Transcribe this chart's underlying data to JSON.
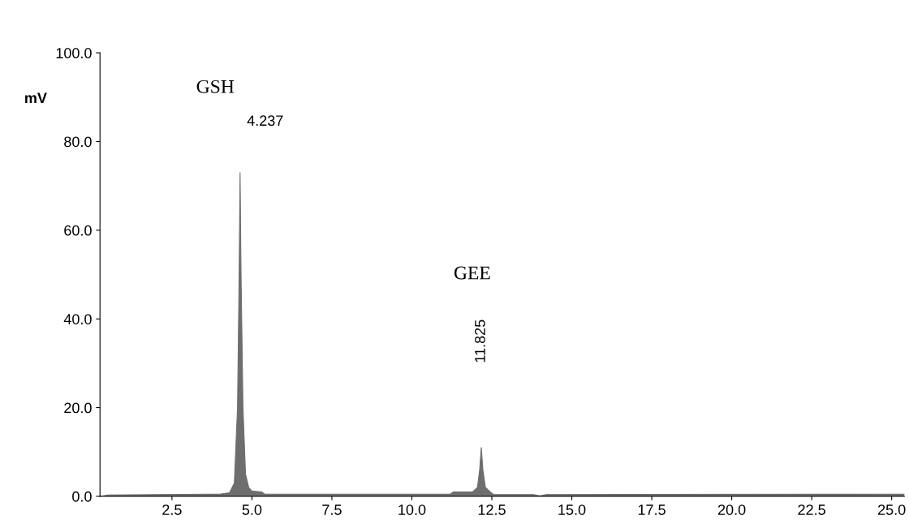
{
  "chart_data": {
    "type": "area",
    "ylabel": "mV",
    "x": [
      0.25,
      0.5,
      2.0,
      4.0,
      4.3,
      4.45,
      4.55,
      4.6,
      4.63,
      4.66,
      4.72,
      4.8,
      4.9,
      5.0,
      5.3,
      5.4,
      8.0,
      11.2,
      11.3,
      11.9,
      12.05,
      12.12,
      12.17,
      12.22,
      12.3,
      12.45,
      12.55,
      13.8,
      14.0,
      14.2,
      25.4
    ],
    "series": [
      {
        "color": "#6e6e6e",
        "values": [
          0,
          0.3,
          0.4,
          0.5,
          0.8,
          3,
          20,
          50,
          73,
          50,
          20,
          5,
          2,
          1.2,
          1.0,
          0.5,
          0.5,
          0.5,
          1.0,
          1.0,
          2,
          6,
          11,
          6,
          2,
          1,
          0.4,
          0.4,
          0.1,
          0.4,
          0.5
        ]
      }
    ],
    "annotations": [
      "GSH",
      "4.237",
      "GEE",
      "11.825"
    ],
    "xlim": [
      0.25,
      25.4
    ],
    "xticks": [
      {
        "value": 2.5,
        "label": "2.5"
      },
      {
        "value": 5,
        "label": "5.0"
      },
      {
        "value": 7.5,
        "label": "7.5"
      },
      {
        "value": 10,
        "label": "10.0"
      },
      {
        "value": 12.5,
        "label": "12.5"
      },
      {
        "value": 15,
        "label": "15.0"
      },
      {
        "value": 17.5,
        "label": "17.5"
      },
      {
        "value": 20,
        "label": "20.0"
      },
      {
        "value": 22.5,
        "label": "22.5"
      },
      {
        "value": 25,
        "label": "25.0"
      }
    ],
    "ylim": [
      0,
      100
    ],
    "yticks": [
      {
        "value": 0,
        "label": "0.0"
      },
      {
        "value": 20,
        "label": "20.0"
      },
      {
        "value": 40,
        "label": "40.0"
      },
      {
        "value": 60,
        "label": "60.0"
      },
      {
        "value": 80,
        "label": "80.0"
      },
      {
        "value": 100,
        "label": "100.0"
      }
    ],
    "grid": false
  }
}
